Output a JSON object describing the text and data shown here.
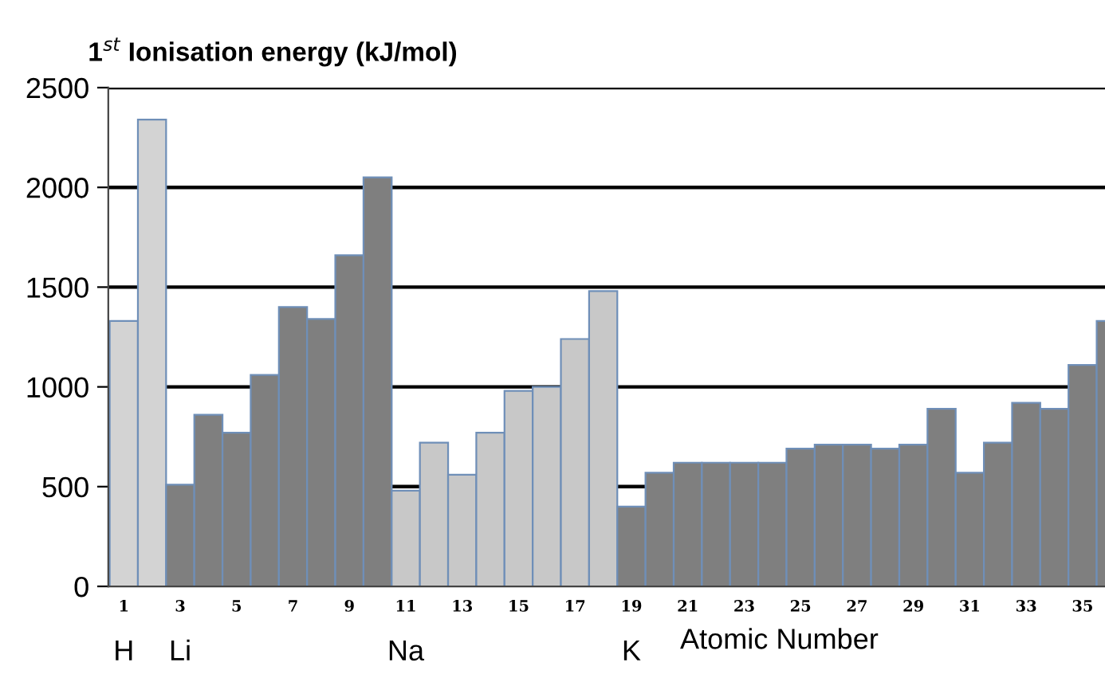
{
  "chart_data": {
    "type": "bar",
    "title": "1$^{st}$ Ionisation energy (kJ/mol)",
    "xlabel": "Atomic Number",
    "categories": [
      "1\nH",
      null,
      "3\nLi",
      null,
      "5",
      null,
      "7",
      null,
      "9",
      null,
      "11\nNa",
      null,
      "13",
      null,
      "15",
      null,
      "17",
      null,
      "19\nK",
      null,
      "21",
      null,
      "23",
      null,
      "25",
      null,
      "27",
      null,
      "29",
      null,
      "31",
      null,
      "33",
      null,
      "35",
      null
    ],
    "values": [
      1330,
      2340,
      510,
      860,
      770,
      1060,
      1400,
      1340,
      1660,
      2050,
      480,
      720,
      560,
      770,
      980,
      1000,
      1240,
      1480,
      400,
      570,
      620,
      620,
      620,
      620,
      690,
      710,
      710,
      690,
      710,
      890,
      570,
      720,
      920,
      890,
      1110,
      1330
    ],
    "colors": [
      "#d3d3d3",
      "#d3d3d3",
      "#7f7f7f",
      "#7f7f7f",
      "#7f7f7f",
      "#7f7f7f",
      "#7f7f7f",
      "#7f7f7f",
      "#7f7f7f",
      "#7f7f7f",
      "#c8c8c8",
      "#c8c8c8",
      "#c8c8c8",
      "#c8c8c8",
      "#c8c8c8",
      "#c8c8c8",
      "#c8c8c8",
      "#c8c8c8",
      "#7f7f7f",
      "#7f7f7f",
      "#7f7f7f",
      "#7f7f7f",
      "#7f7f7f",
      "#7f7f7f",
      "#7f7f7f",
      "#7f7f7f",
      "#7f7f7f",
      "#7f7f7f",
      "#7f7f7f",
      "#7f7f7f",
      "#7f7f7f",
      "#7f7f7f",
      "#7f7f7f",
      "#7f7f7f",
      "#7f7f7f",
      "#7f7f7f"
    ],
    "ylim": [
      0,
      2500
    ],
    "yticks": [
      0,
      500,
      1000,
      1500,
      2000,
      2500
    ],
    "grid": "y"
  }
}
